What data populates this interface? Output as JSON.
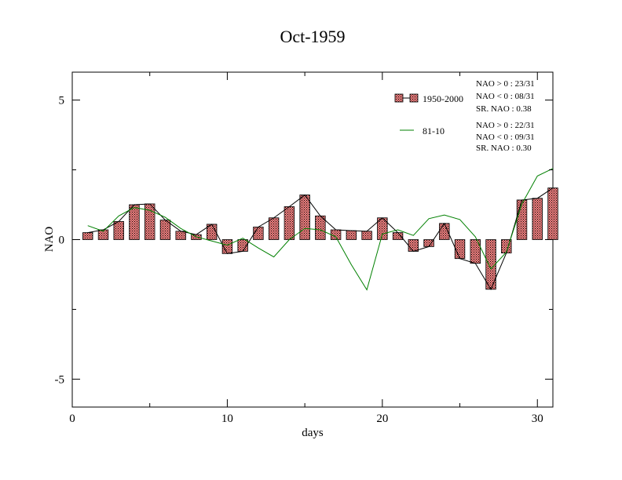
{
  "chart_data": {
    "type": "bar",
    "title": "Oct-1959",
    "xlabel": "days",
    "ylabel": "NAO",
    "xlim": [
      0,
      31
    ],
    "ylim": [
      -6,
      6
    ],
    "xticks": [
      0,
      10,
      20,
      30
    ],
    "yticks": [
      -5,
      0,
      5
    ],
    "xtick_labels": [
      "0",
      "10",
      "20",
      "30"
    ],
    "ytick_labels": [
      "-5",
      "0",
      "5"
    ],
    "grid": false,
    "legend_position": "top-right",
    "colors": {
      "bar_fill": "#f08080",
      "bar_hatch": "#000000",
      "bar_line": "#000000",
      "green_line": "#008000"
    },
    "x": [
      1,
      2,
      3,
      4,
      5,
      6,
      7,
      8,
      9,
      10,
      11,
      12,
      13,
      14,
      15,
      16,
      17,
      18,
      19,
      20,
      21,
      22,
      23,
      24,
      25,
      26,
      27,
      28,
      29,
      30,
      31
    ],
    "series": [
      {
        "name": "1950-2000",
        "style": "hatched-bar-with-black-line",
        "values": [
          0.25,
          0.35,
          0.65,
          1.25,
          1.28,
          0.7,
          0.3,
          0.18,
          0.55,
          -0.5,
          -0.42,
          0.45,
          0.78,
          1.18,
          1.6,
          0.85,
          0.35,
          0.32,
          0.3,
          0.78,
          0.25,
          -0.42,
          -0.25,
          0.58,
          -0.68,
          -0.85,
          -1.78,
          -0.48,
          1.42,
          1.48,
          1.85
        ]
      },
      {
        "name": "81-10",
        "style": "green-line",
        "values": [
          0.5,
          0.3,
          0.85,
          1.15,
          1.05,
          0.8,
          0.4,
          0.1,
          -0.05,
          -0.2,
          0.05,
          -0.3,
          -0.62,
          0.0,
          0.4,
          0.35,
          0.1,
          -0.9,
          -1.8,
          0.2,
          0.35,
          0.15,
          0.75,
          0.88,
          0.72,
          0.1,
          -1.05,
          -0.45,
          1.28,
          2.28,
          2.55
        ]
      }
    ],
    "legend": [
      {
        "label": "1950-2000",
        "stats": [
          "NAO > 0 : 23/31",
          "NAO < 0 : 08/31",
          "SR. NAO :  0.38"
        ]
      },
      {
        "label": "81-10",
        "stats": [
          "NAO > 0 : 22/31",
          "NAO < 0 : 09/31",
          "SR. NAO :  0.30"
        ]
      }
    ]
  }
}
